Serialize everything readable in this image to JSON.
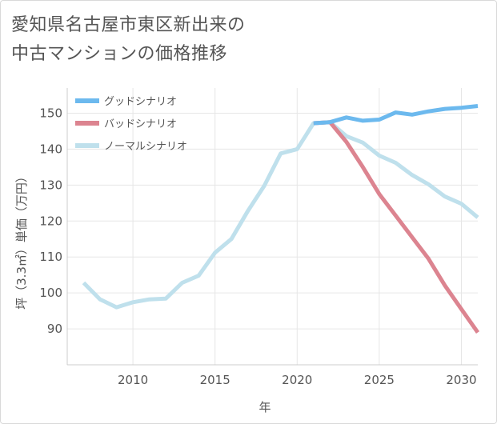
{
  "title_lines": [
    "愛知県名古屋市東区新出来の",
    "中古マンションの価格推移"
  ],
  "chart_data": {
    "type": "line",
    "title": "愛知県名古屋市東区新出来の中古マンションの価格推移",
    "xlabel": "年",
    "ylabel": "坪（3.3㎡）単価（万円）",
    "xlim": [
      2006,
      2031
    ],
    "ylim": [
      80,
      157
    ],
    "xticks": [
      2010,
      2015,
      2020,
      2025,
      2030
    ],
    "yticks": [
      90,
      100,
      110,
      120,
      130,
      140,
      150
    ],
    "grid": true,
    "legend_position": "top-left",
    "series": [
      {
        "name": "グッドシナリオ",
        "color": "#6cb9ee",
        "x": [
          2021,
          2022,
          2023,
          2024,
          2025,
          2026,
          2027,
          2028,
          2029,
          2030,
          2031
        ],
        "y": [
          147.2,
          147.5,
          148.8,
          147.9,
          148.2,
          150.2,
          149.6,
          150.5,
          151.2,
          151.5,
          152.0
        ]
      },
      {
        "name": "バッドシナリオ",
        "color": "#dc8490",
        "x": [
          2021,
          2022,
          2023,
          2024,
          2025,
          2026,
          2027,
          2028,
          2029,
          2030,
          2031
        ],
        "y": [
          147.2,
          147.5,
          142.0,
          135.0,
          127.5,
          121.5,
          115.5,
          109.5,
          102.0,
          95.5,
          89.0
        ]
      },
      {
        "name": "ノーマルシナリオ",
        "color": "#bfe0ec",
        "x": [
          2007,
          2008,
          2009,
          2010,
          2011,
          2012,
          2013,
          2014,
          2015,
          2016,
          2017,
          2018,
          2019,
          2020,
          2021,
          2022,
          2023,
          2024,
          2025,
          2026,
          2027,
          2028,
          2029,
          2030,
          2031
        ],
        "y": [
          102.8,
          98.2,
          96.0,
          97.4,
          98.2,
          98.4,
          102.8,
          104.8,
          111.2,
          115.0,
          122.8,
          129.8,
          138.8,
          140.0,
          147.2,
          147.5,
          143.6,
          141.8,
          138.2,
          136.2,
          132.8,
          130.2,
          126.8,
          124.8,
          121.0
        ]
      }
    ]
  }
}
